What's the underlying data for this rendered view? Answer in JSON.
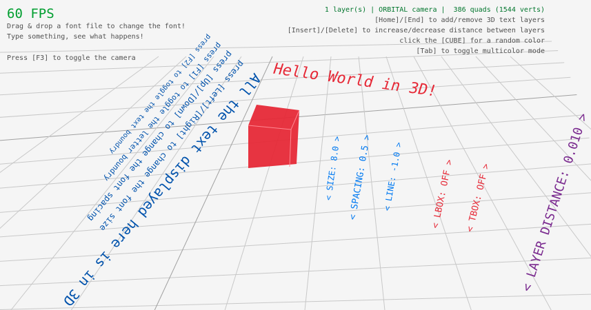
{
  "hud": {
    "fps": "60 FPS",
    "help_lines": [
      "Drag & drop a font file to change the font!",
      "Type something, see what happens!",
      "Press [F3] to toggle the camera"
    ],
    "status": "1 layer(s) | ORBITAL camera |  386 quads (1544 verts)",
    "right_lines": [
      "[Home]/[End] to add/remove 3D text layers",
      "[Insert]/[Delete] to increase/decrease distance between layers",
      "click the [CUBE] for a random color",
      "[Tab] to toggle multicolor mode"
    ]
  },
  "scene": {
    "title_text": "Hello World in 3D!",
    "instructions": [
      "press [F2] to toggle the text boundry",
      "press [F1] to toggle the letter boundry",
      "press [Up]/[Down] to change the font spacing",
      "press [Left]/[Right] to change the font size",
      "All the text displayed here is in 3D"
    ],
    "settings": [
      {
        "text": "< SIZE: 8.0 >",
        "color": "#0079f1"
      },
      {
        "text": "< SPACING: 0.5 >",
        "color": "#0079f1"
      },
      {
        "text": "< LINE: -1.0 >",
        "color": "#0079f1"
      },
      {
        "text": "< LBOX: OFF >",
        "color": "#e62937"
      },
      {
        "text": "< TBOX: OFF >",
        "color": "#e62937"
      },
      {
        "text": "< LAYER DISTANCE: 0.010 >",
        "color": "#7a2a8f"
      }
    ],
    "cube_color": "#e62937",
    "text_color": "#0052ac"
  }
}
